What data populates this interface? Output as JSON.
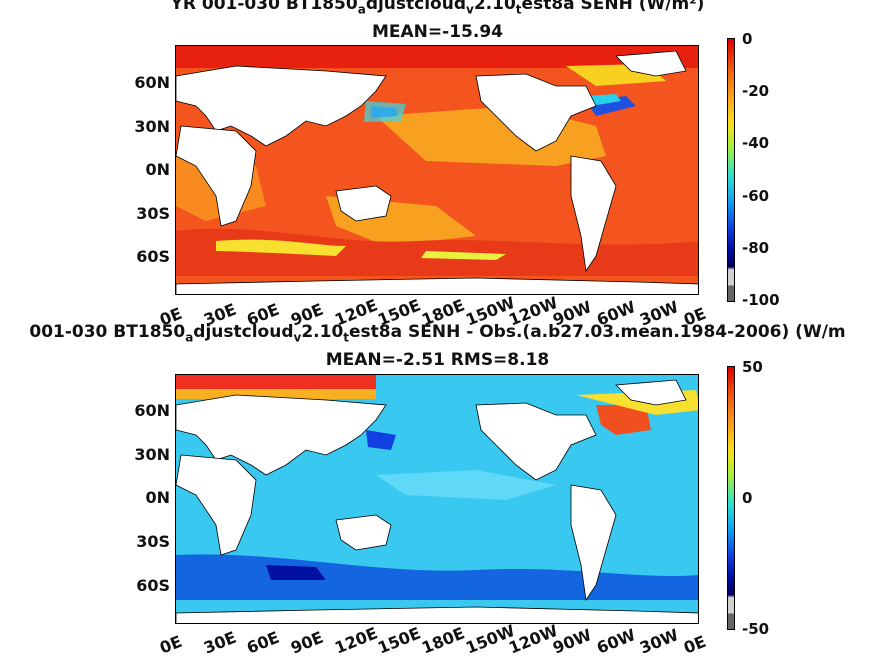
{
  "panel_top": {
    "title_line1": "YR 001-030 BT1850",
    "title_sub_a": "a",
    "title_mid": "djustcloud",
    "title_sub_v": "v",
    "title_mid2": "2.10",
    "title_sub_t": "t",
    "title_end": "est8a SENH (W/m²)",
    "mean_label": "MEAN=-15.94",
    "colorbar": {
      "ticks": [
        "0",
        "-20",
        "-40",
        "-60",
        "-80",
        "-100"
      ],
      "range": [
        -100,
        0
      ]
    }
  },
  "panel_bottom": {
    "title_start": "001-030 BT1850",
    "title_sub_a": "a",
    "title_mid": "djustcloud",
    "title_sub_v": "v",
    "title_mid2": "2.10",
    "title_sub_t": "t",
    "title_end": "est8a SENH - Obs.(a.b27.03.mean.1984-2006) (W/m",
    "stats_label": "MEAN=-2.51 RMS=8.18",
    "colorbar": {
      "ticks": [
        "50",
        "0",
        "-50"
      ],
      "range": [
        -50,
        50
      ]
    }
  },
  "axes": {
    "lat_ticks": [
      "60N",
      "30N",
      "0N",
      "30S",
      "60S"
    ],
    "lon_ticks": [
      "0E",
      "30E",
      "60E",
      "90E",
      "120E",
      "150E",
      "180E",
      "150W",
      "120W",
      "90W",
      "60W",
      "30W",
      "0E"
    ]
  },
  "colors": {
    "land": "#ffffff",
    "top_field": "#f4551f",
    "top_field_light": "#f8a020",
    "bottom_field": "#38c8f0",
    "bottom_field_dark": "#1466e0",
    "warm": "#f03020"
  },
  "chart_data": [
    {
      "type": "heatmap",
      "title": "YR 001-030 BT1850adjustcloudv2.10test8a SENH (W/m²)",
      "subtitle": "MEAN=-15.94",
      "xlabel": "",
      "ylabel": "",
      "xlim": [
        0,
        360
      ],
      "ylim": [
        -90,
        90
      ],
      "colorbar_range": [
        -100,
        0
      ],
      "mean": -15.94
    },
    {
      "type": "heatmap",
      "title": "001-030 BT1850adjustcloudv2.10test8a SENH - Obs.(a.b27.03.mean.1984-2006) (W/m",
      "subtitle": "MEAN=-2.51 RMS=8.18",
      "xlabel": "",
      "ylabel": "",
      "xlim": [
        0,
        360
      ],
      "ylim": [
        -90,
        90
      ],
      "colorbar_range": [
        -50,
        50
      ],
      "mean": -2.51,
      "rms": 8.18
    }
  ]
}
